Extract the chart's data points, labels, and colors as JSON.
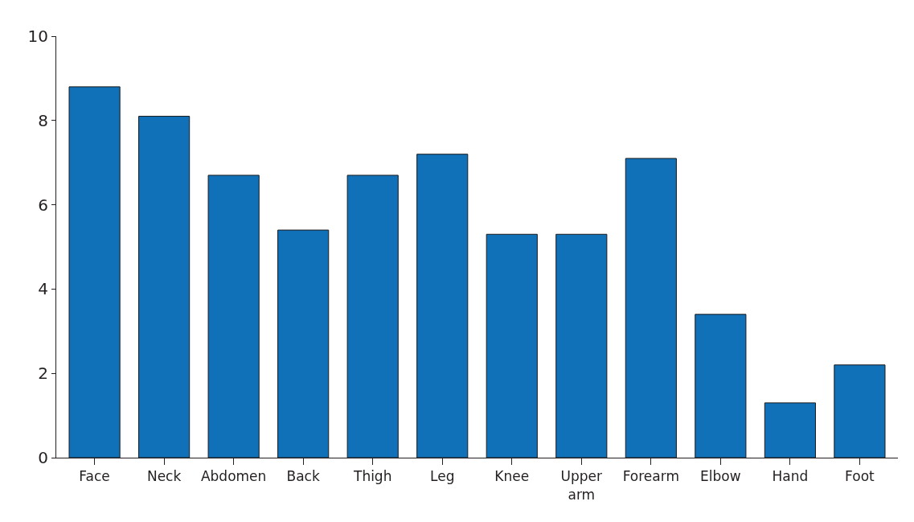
{
  "chart_data": {
    "type": "bar",
    "categories": [
      "Face",
      "Neck",
      "Abdomen",
      "Back",
      "Thigh",
      "Leg",
      "Knee",
      "Upper\narm",
      "Forearm",
      "Elbow",
      "Hand",
      "Foot"
    ],
    "values": [
      8.8,
      8.1,
      6.7,
      5.4,
      6.7,
      7.2,
      5.3,
      5.3,
      7.1,
      3.4,
      1.3,
      2.2
    ],
    "color": "#1070b8",
    "ylim": [
      0,
      10
    ],
    "yticks": [
      0,
      2,
      4,
      6,
      8,
      10
    ]
  }
}
